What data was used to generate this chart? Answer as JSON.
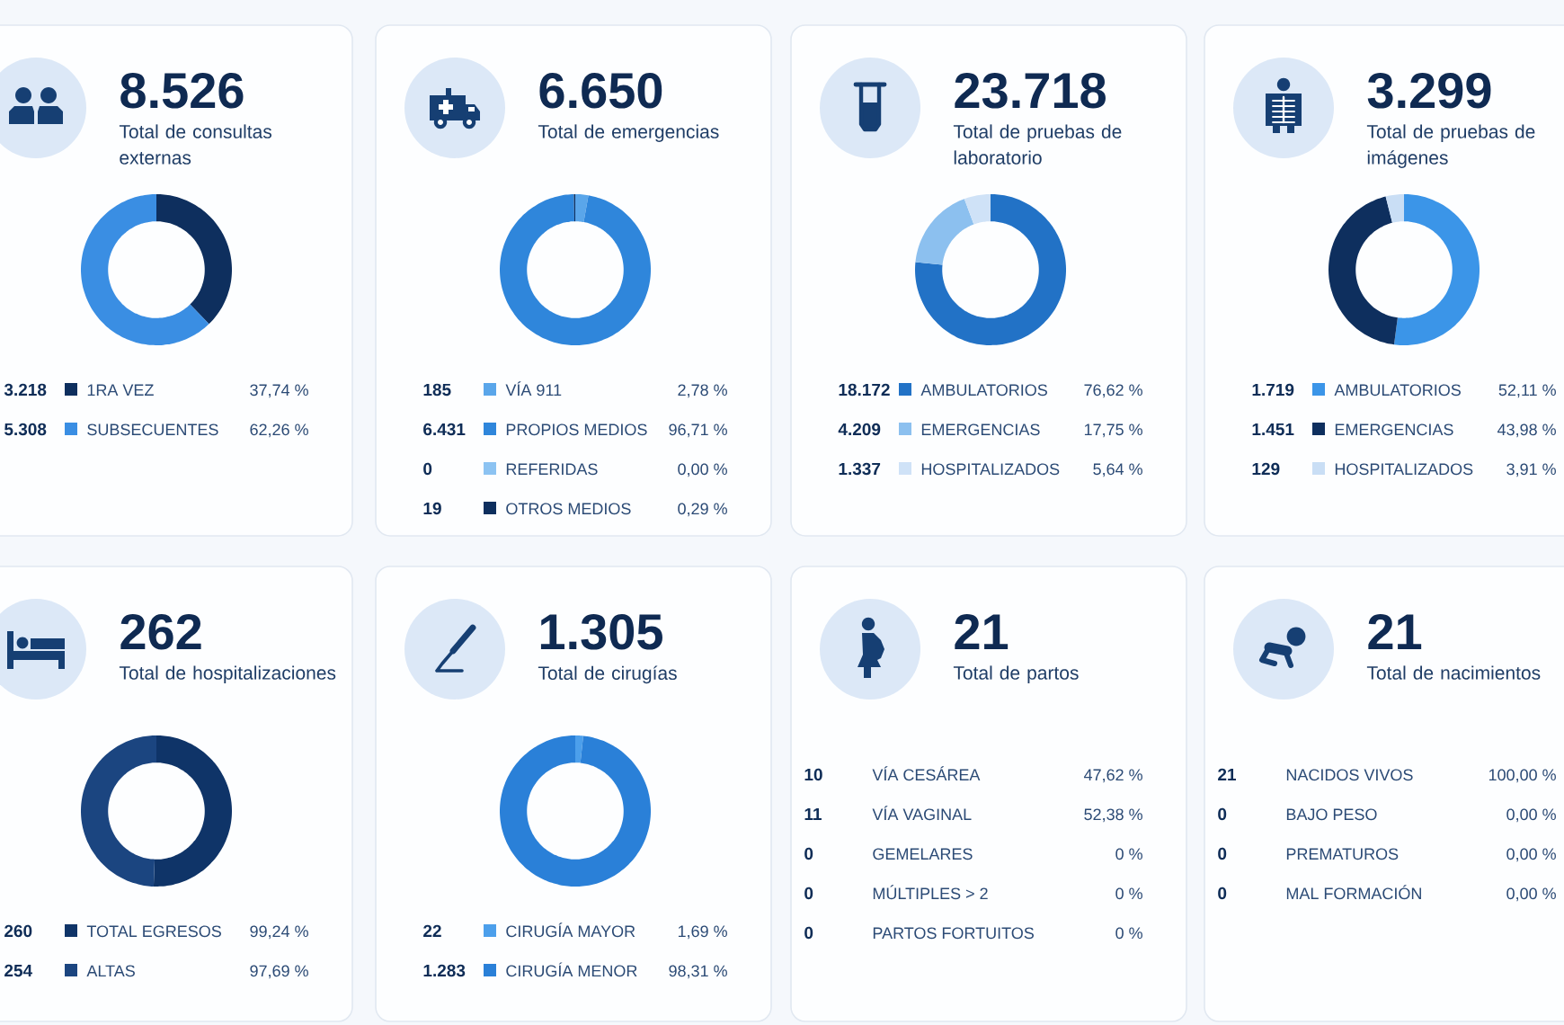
{
  "chart_data": [
    {
      "type": "donut",
      "title": "8.526",
      "subtitle": "Total de consultas externas",
      "categories": [
        "1RA VEZ",
        "SUBSECUENTES"
      ],
      "values": [
        3218,
        5308
      ],
      "value_labels": [
        "3.218",
        "5.308"
      ],
      "colors": [
        "#0e2f5e",
        "#3a8ee3"
      ],
      "annotations": [
        "37,74 %",
        "62,26 %"
      ],
      "legend": "bottom"
    },
    {
      "type": "donut",
      "title": "6.650",
      "subtitle": "Total de emergencias",
      "categories": [
        "VÍA 911",
        "PROPIOS MEDIOS",
        "REFERIDAS",
        "OTROS MEDIOS"
      ],
      "values": [
        185,
        6431,
        0,
        19
      ],
      "value_labels": [
        "185",
        "6.431",
        "0",
        "19"
      ],
      "colors": [
        "#5aa6ea",
        "#2f86db",
        "#8cc3f2",
        "#0e2f5e"
      ],
      "annotations": [
        "2,78 %",
        "96,71 %",
        "0,00 %",
        "0,29 %"
      ],
      "legend": "bottom"
    },
    {
      "type": "donut",
      "title": "23.718",
      "subtitle": "Total de pruebas de laboratorio",
      "categories": [
        "AMBULATORIOS",
        "EMERGENCIAS",
        "HOSPITALIZADOS"
      ],
      "values": [
        18172,
        4209,
        1337
      ],
      "value_labels": [
        "18.172",
        "4.209",
        "1.337"
      ],
      "colors": [
        "#2272c6",
        "#8cc0ef",
        "#cfe2f7"
      ],
      "annotations": [
        "76,62 %",
        "17,75 %",
        "5,64 %"
      ],
      "legend": "bottom"
    },
    {
      "type": "donut",
      "title": "3.299",
      "subtitle": "Total de pruebas de imágenes",
      "categories": [
        "AMBULATORIOS",
        "EMERGENCIAS",
        "HOSPITALIZADOS"
      ],
      "values": [
        1719,
        1451,
        129
      ],
      "value_labels": [
        "1.719",
        "1.451",
        "129"
      ],
      "colors": [
        "#3b95e8",
        "#0e2f5e",
        "#c9def5"
      ],
      "annotations": [
        "52,11 %",
        "43,98 %",
        "3,91 %"
      ],
      "legend": "bottom"
    },
    {
      "type": "donut",
      "title": "262",
      "subtitle": "Total de hospitalizaciones",
      "categories": [
        "TOTAL EGRESOS",
        "ALTAS"
      ],
      "values": [
        260,
        254
      ],
      "data_labels": true,
      "colors": [
        "#0f3468",
        "#1b4580"
      ],
      "annotations": [
        "99,24 %",
        "97,69 %"
      ],
      "legend": "bottom"
    },
    {
      "type": "donut",
      "title": "1.305",
      "subtitle": "Total de cirugías",
      "categories": [
        "CIRUGÍA MAYOR",
        "CIRUGÍA MENOR"
      ],
      "values": [
        22,
        1283
      ],
      "value_labels": [
        "22",
        "1.283"
      ],
      "colors": [
        "#4c9feb",
        "#2a80d8"
      ],
      "annotations": [
        "1,69 %",
        "98,31 %"
      ],
      "legend": "bottom"
    },
    {
      "type": "other",
      "title": "21",
      "subtitle": "Total de partos",
      "annotations": [
        "10",
        "VÍA CESÁREA",
        "47,62 %",
        "11",
        "VÍA VAGINAL",
        "52,38 %",
        "0",
        "GEMELARES",
        "0 %",
        "0",
        "MÚLTIPLES > 2",
        "0 %",
        "0",
        "PARTOS FORTUITOS",
        "0 %"
      ]
    },
    {
      "type": "other",
      "title": "21",
      "subtitle": "Total de nacimientos",
      "annotations": [
        "21",
        "NACIDOS VIVOS",
        "100,00 %",
        "0",
        "BAJO PESO",
        "0,00 %",
        "0",
        "PREMATUROS",
        "0,00 %",
        "0",
        "MAL FORMACIÓN",
        "0,00 %"
      ]
    }
  ]
}
